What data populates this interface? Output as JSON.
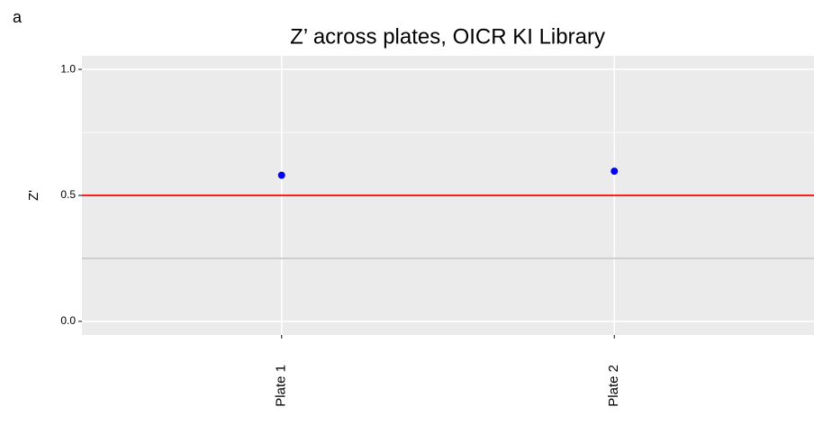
{
  "panel_label": "a",
  "chart_data": {
    "type": "scatter",
    "title": "Z’ across plates, OICR KI Library",
    "y_label": "Z'",
    "categories": [
      "Plate 1",
      "Plate 2"
    ],
    "values": [
      0.58,
      0.596
    ],
    "color": "#0000ff",
    "ylim": [
      -0.054,
      1.054
    ],
    "yticks": [
      {
        "value": 0,
        "label": "0.0"
      },
      {
        "value": 0.5,
        "label": "0.5"
      },
      {
        "value": 1,
        "label": "1.0"
      }
    ],
    "minor_yticks": [
      0.25,
      0.75
    ],
    "hlines": [
      {
        "value": 0.5,
        "color": "#ff0000"
      },
      {
        "value": 0.25,
        "color": "#cccccc"
      }
    ],
    "grid": true
  }
}
